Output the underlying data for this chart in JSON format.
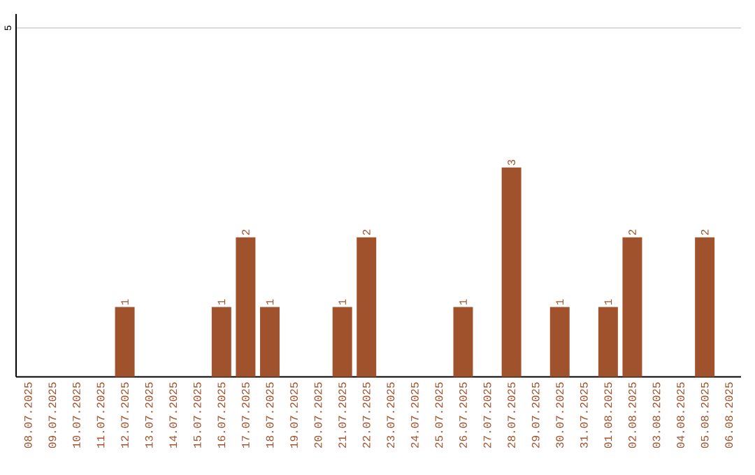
{
  "chart_data": {
    "type": "bar",
    "categories": [
      "08.07.2025",
      "09.07.2025",
      "10.07.2025",
      "11.07.2025",
      "12.07.2025",
      "13.07.2025",
      "14.07.2025",
      "15.07.2025",
      "16.07.2025",
      "17.07.2025",
      "18.07.2025",
      "19.07.2025",
      "20.07.2025",
      "21.07.2025",
      "22.07.2025",
      "23.07.2025",
      "24.07.2025",
      "25.07.2025",
      "26.07.2025",
      "27.07.2025",
      "28.07.2025",
      "29.07.2025",
      "30.07.2025",
      "31.07.2025",
      "01.08.2025",
      "02.08.2025",
      "03.08.2025",
      "04.08.2025",
      "05.08.2025",
      "06.08.2025"
    ],
    "values": [
      0,
      0,
      0,
      0,
      1,
      0,
      0,
      0,
      1,
      2,
      1,
      0,
      0,
      1,
      2,
      0,
      0,
      0,
      1,
      0,
      3,
      0,
      1,
      0,
      1,
      2,
      0,
      0,
      2,
      0
    ],
    "value_labels": [
      null,
      null,
      null,
      null,
      "1",
      null,
      null,
      null,
      "1",
      "2",
      "1",
      null,
      null,
      "1",
      "2",
      null,
      null,
      null,
      "1",
      null,
      "3",
      null,
      "1",
      null,
      "1",
      "2",
      null,
      null,
      "2",
      null
    ],
    "color": "#a0522d",
    "ylim": [
      0,
      5.2
    ],
    "yticks": [
      5
    ],
    "grid": "y"
  }
}
